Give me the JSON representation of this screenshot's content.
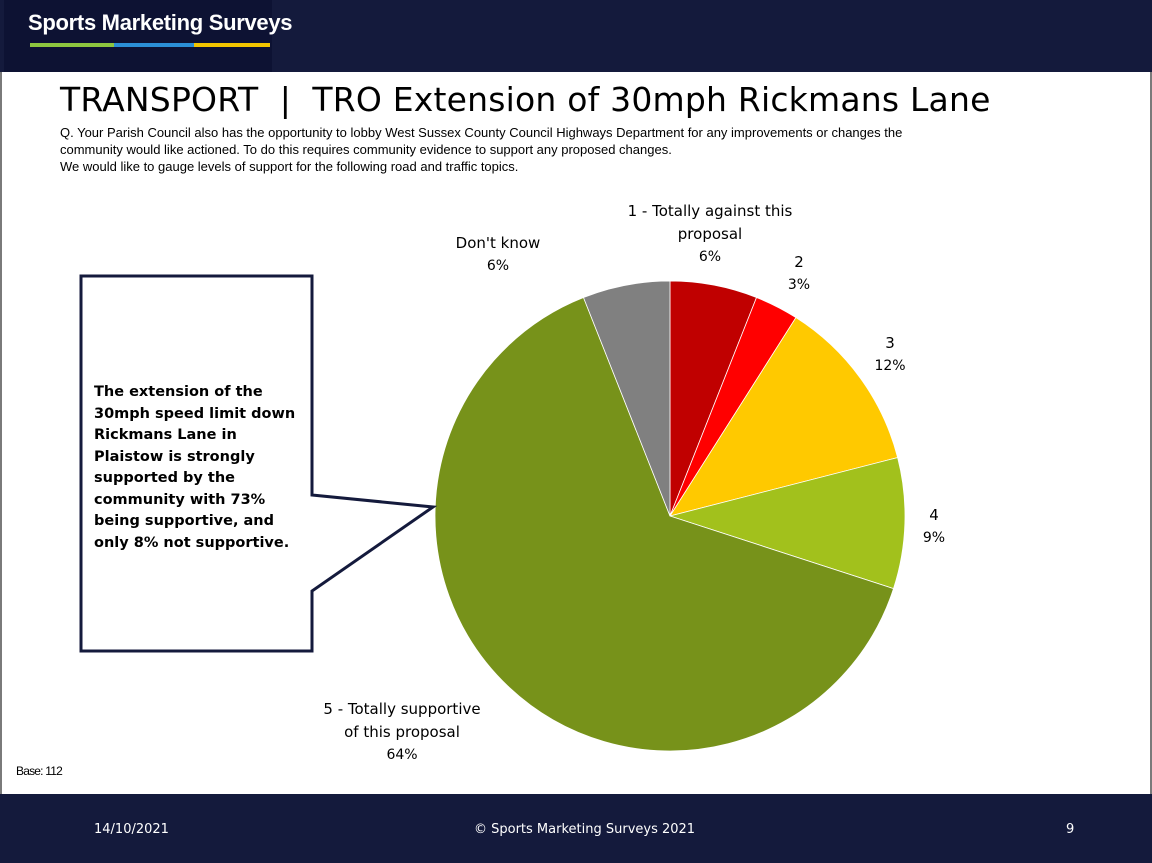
{
  "brand": {
    "name": "Sports Marketing Surveys",
    "colors": {
      "header": "#141a3c",
      "stripe_green": "#8dc63f",
      "stripe_blue": "#2b8fd6",
      "stripe_yellow": "#f2c500"
    }
  },
  "page_title": "TRANSPORT  |  TRO Extension of 30mph Rickmans Lane",
  "question_lines": [
    "Q. Your Parish Council also has the opportunity to lobby West Sussex County Council Highways Department for any improvements or changes the",
    "community would like actioned. To do this requires community evidence to support any proposed changes.",
    "We would like to gauge levels of support for the following road and traffic topics."
  ],
  "callout": {
    "text": "The extension of the 30mph speed limit down Rickmans Lane in Plaistow is strongly supported by the community with 73% being supportive, and only 8% not supportive."
  },
  "base_text": "Base: 112",
  "footer": {
    "date": "14/10/2021",
    "copyright": "© Sports Marketing Surveys 2021",
    "page_number": "9"
  },
  "chart_data": {
    "type": "pie",
    "start_angle_deg": 0,
    "direction": "clockwise",
    "slices": [
      {
        "label_lines": [
          "1 - Totally against this",
          "proposal"
        ],
        "value_label": "6%",
        "value": 6,
        "color": "#c00000"
      },
      {
        "label_lines": [
          "2"
        ],
        "value_label": "3%",
        "value": 3,
        "color": "#ff0000"
      },
      {
        "label_lines": [
          "3"
        ],
        "value_label": "12%",
        "value": 12,
        "color": "#ffc900"
      },
      {
        "label_lines": [
          "4"
        ],
        "value_label": "9%",
        "value": 9,
        "color": "#a2c11c"
      },
      {
        "label_lines": [
          "5 - Totally supportive",
          "of this proposal"
        ],
        "value_label": "64%",
        "value": 64,
        "color": "#77921a"
      },
      {
        "label_lines": [
          "Don't know"
        ],
        "value_label": "6%",
        "value": 6,
        "color": "#808080"
      }
    ]
  }
}
